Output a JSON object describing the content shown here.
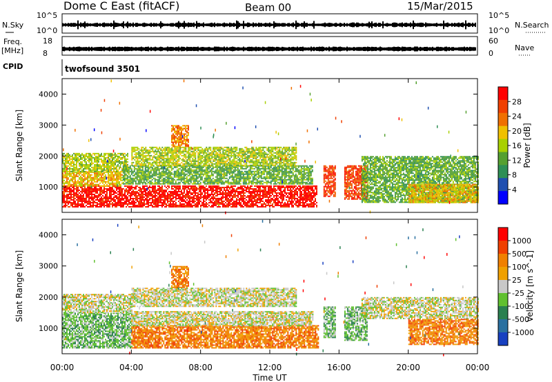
{
  "header": {
    "title": "Dome C East (fitACF)",
    "beam": "Beam 00",
    "date": "15/Mar/2015"
  },
  "strips": {
    "nsky_label": "N.Sky",
    "nsky_ticks": [
      "10^5",
      "10^0"
    ],
    "nsearch_label": "N.Search",
    "freq_label": "Freq.",
    "freq_unit": "[MHz]",
    "freq_ticks": [
      "18",
      "8"
    ],
    "nave_label": "Nave",
    "nave_ticks": [
      "60",
      "0"
    ],
    "cpid_label": "CPID",
    "cpid_value": "twofsound 3501"
  },
  "colors": {
    "power": [
      "#0000ff",
      "#1f4fb0",
      "#2e8f55",
      "#55a030",
      "#a8d000",
      "#f0c000",
      "#f07000",
      "#f04000",
      "#ff0000"
    ],
    "velocity": [
      "#1840c0",
      "#2a70a0",
      "#2a8050",
      "#60c030",
      "#c8c8c8",
      "#f0a000",
      "#f08000",
      "#f04000",
      "#ff0000"
    ]
  },
  "chart_data": [
    {
      "type": "heatmap",
      "name": "Power",
      "ylabel": "Slant Range [km]",
      "ylim": [
        180,
        4500
      ],
      "yticks": [
        "1000",
        "2000",
        "3000",
        "4000"
      ],
      "xticks": [
        "00:00",
        "04:00",
        "08:00",
        "12:00",
        "16:00",
        "20:00",
        "00:00"
      ],
      "colorbar_label": "Power [dB]",
      "colorbar_ticks": [
        "28",
        "24",
        "20",
        "16",
        "12",
        "8",
        "4"
      ],
      "regions": [
        {
          "t0": 0.0,
          "t1": 14.7,
          "r0": 350,
          "r1": 1050,
          "level": 8
        },
        {
          "t0": 0.0,
          "t1": 3.5,
          "r0": 1050,
          "r1": 1500,
          "level": 5
        },
        {
          "t0": 0.0,
          "t1": 3.8,
          "r0": 1500,
          "r1": 2100,
          "level": 4
        },
        {
          "t0": 3.5,
          "t1": 14.5,
          "r0": 1100,
          "r1": 1700,
          "level": 3
        },
        {
          "t0": 4.0,
          "t1": 13.5,
          "r0": 1700,
          "r1": 2300,
          "level": 4
        },
        {
          "t0": 6.3,
          "t1": 7.3,
          "r0": 2300,
          "r1": 3000,
          "level": 6
        },
        {
          "t0": 15.1,
          "t1": 15.8,
          "r0": 700,
          "r1": 1700,
          "level": 7
        },
        {
          "t0": 16.3,
          "t1": 17.6,
          "r0": 600,
          "r1": 1700,
          "level": 7
        },
        {
          "t0": 17.3,
          "t1": 24.0,
          "r0": 500,
          "r1": 2000,
          "level": 3
        },
        {
          "t0": 20.0,
          "t1": 24.0,
          "r0": 500,
          "r1": 1100,
          "level": 5
        }
      ]
    },
    {
      "type": "heatmap",
      "name": "Velocity",
      "ylabel": "Slant Range [km]",
      "ylim": [
        180,
        4500
      ],
      "yticks": [
        "1000",
        "2000",
        "3000",
        "4000"
      ],
      "xticks": [
        "00:00",
        "04:00",
        "08:00",
        "12:00",
        "16:00",
        "20:00",
        "00:00"
      ],
      "xlabel": "Time UT",
      "colorbar_label": "Velocity [m s^-1]",
      "colorbar_ticks": [
        "1000",
        "500",
        "100",
        "25",
        "-25",
        "-100",
        "-500",
        "-1000"
      ],
      "regions": [
        {
          "t0": 0.0,
          "t1": 4.0,
          "r0": 350,
          "r1": 1500,
          "level": 3
        },
        {
          "t0": 0.0,
          "t1": 4.0,
          "r0": 1500,
          "r1": 2100,
          "level": 4
        },
        {
          "t0": 4.0,
          "t1": 14.8,
          "r0": 350,
          "r1": 1100,
          "level": 6
        },
        {
          "t0": 4.0,
          "t1": 14.5,
          "r0": 1100,
          "r1": 1550,
          "level": 4
        },
        {
          "t0": 4.0,
          "t1": 13.5,
          "r0": 1700,
          "r1": 2300,
          "level": 4
        },
        {
          "t0": 6.3,
          "t1": 7.3,
          "r0": 2300,
          "r1": 3000,
          "level": 6
        },
        {
          "t0": 15.1,
          "t1": 15.8,
          "r0": 700,
          "r1": 1700,
          "level": 3
        },
        {
          "t0": 16.3,
          "t1": 17.6,
          "r0": 600,
          "r1": 1700,
          "level": 3
        },
        {
          "t0": 17.3,
          "t1": 24.0,
          "r0": 1300,
          "r1": 2000,
          "level": 4
        },
        {
          "t0": 20.0,
          "t1": 24.0,
          "r0": 500,
          "r1": 1300,
          "level": 6
        }
      ]
    }
  ]
}
